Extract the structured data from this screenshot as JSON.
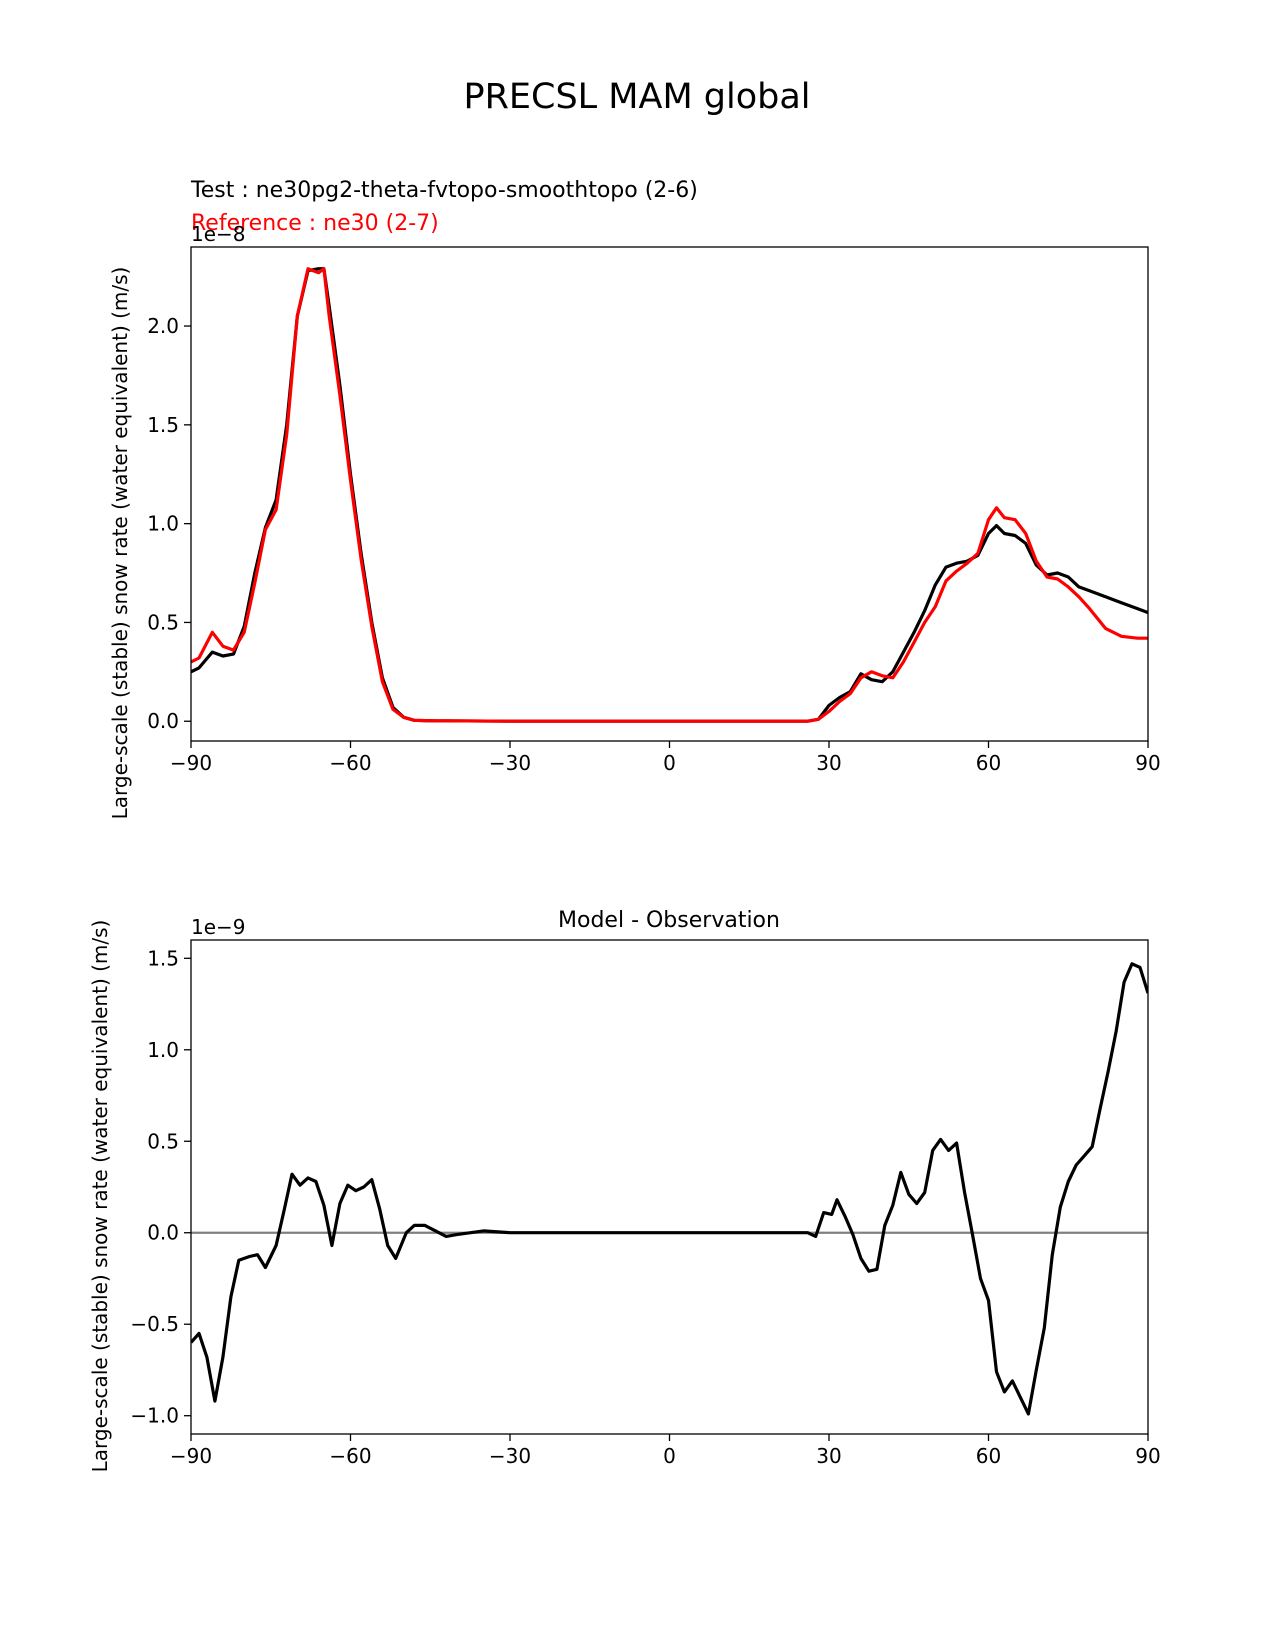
{
  "figure_title": "PRECSL MAM global",
  "colors": {
    "test": "#000000",
    "reference": "#ff0000",
    "zero_line": "#808080"
  },
  "chart_data": [
    {
      "type": "line",
      "title": "",
      "test_label": "Test : ne30pg2-theta-fvtopo-smoothtopo (2-6)",
      "reference_label": "Reference : ne30 (2-7)",
      "ylabel": "Large-scale (stable) snow rate (water equivalent) (m/s)",
      "y_offset_label": "1e−8",
      "xlim": [
        -90,
        90
      ],
      "ylim": [
        -0.1,
        2.4
      ],
      "xticks": [
        -90,
        -60,
        -30,
        0,
        30,
        60,
        90
      ],
      "xtick_labels": [
        "−90",
        "−60",
        "−30",
        "0",
        "30",
        "60",
        "90"
      ],
      "yticks": [
        0.0,
        0.5,
        1.0,
        1.5,
        2.0
      ],
      "ytick_labels": [
        "0.0",
        "0.5",
        "1.0",
        "1.5",
        "2.0"
      ],
      "series": [
        {
          "key": "test",
          "x": [
            -90,
            -88.5,
            -86,
            -84,
            -82,
            -80,
            -78,
            -76,
            -74,
            -72,
            -70,
            -68,
            -66,
            -65,
            -64,
            -62,
            -60,
            -58,
            -56,
            -54,
            -52,
            -50,
            -48,
            -46,
            -44,
            -42,
            -30,
            -20,
            -10,
            0,
            10,
            20,
            26,
            28,
            30,
            32,
            34,
            36,
            38,
            40,
            42,
            44,
            46,
            48,
            50,
            52,
            54,
            56,
            58,
            60,
            61.5,
            63,
            65,
            67,
            69,
            71,
            73,
            75,
            77,
            79,
            82,
            85,
            88,
            90
          ],
          "values": [
            0.25,
            0.27,
            0.35,
            0.33,
            0.34,
            0.48,
            0.75,
            0.98,
            1.12,
            1.5,
            2.05,
            2.28,
            2.29,
            2.29,
            2.1,
            1.7,
            1.25,
            0.85,
            0.5,
            0.22,
            0.07,
            0.02,
            0.005,
            0.003,
            0.002,
            0.002,
            0.0,
            0.0,
            0.0,
            0.0,
            0.0,
            0.0,
            0.0,
            0.01,
            0.08,
            0.12,
            0.15,
            0.24,
            0.21,
            0.2,
            0.25,
            0.35,
            0.45,
            0.56,
            0.69,
            0.78,
            0.8,
            0.81,
            0.84,
            0.95,
            0.99,
            0.95,
            0.94,
            0.9,
            0.79,
            0.74,
            0.75,
            0.73,
            0.68,
            0.66,
            0.63,
            0.6,
            0.57,
            0.55
          ]
        },
        {
          "key": "reference",
          "x": [
            -90,
            -88.5,
            -86,
            -84,
            -82,
            -80,
            -78,
            -76,
            -74,
            -72,
            -70,
            -68,
            -66,
            -65,
            -64,
            -62,
            -60,
            -58,
            -56,
            -54,
            -52,
            -50,
            -48,
            -46,
            -44,
            -42,
            -30,
            -20,
            -10,
            0,
            10,
            20,
            26,
            28,
            30,
            32,
            34,
            36,
            38,
            40,
            42,
            44,
            46,
            48,
            50,
            52,
            54,
            56,
            58,
            60,
            61.5,
            63,
            65,
            67,
            69,
            71,
            73,
            75,
            77,
            79,
            82,
            85,
            88,
            90
          ],
          "values": [
            0.3,
            0.32,
            0.45,
            0.38,
            0.36,
            0.45,
            0.7,
            0.97,
            1.07,
            1.45,
            2.05,
            2.29,
            2.27,
            2.29,
            2.05,
            1.65,
            1.22,
            0.82,
            0.48,
            0.2,
            0.06,
            0.02,
            0.005,
            0.003,
            0.002,
            0.002,
            0.0,
            0.0,
            0.0,
            0.0,
            0.0,
            0.0,
            0.0,
            0.01,
            0.05,
            0.1,
            0.14,
            0.22,
            0.25,
            0.23,
            0.22,
            0.3,
            0.4,
            0.5,
            0.58,
            0.71,
            0.76,
            0.8,
            0.85,
            1.02,
            1.08,
            1.03,
            1.02,
            0.95,
            0.81,
            0.73,
            0.72,
            0.68,
            0.63,
            0.57,
            0.47,
            0.43,
            0.42,
            0.42
          ]
        }
      ]
    },
    {
      "type": "line",
      "title": "Model - Observation",
      "ylabel": "Large-scale (stable) snow rate (water equivalent) (m/s)",
      "y_offset_label": "1e−9",
      "xlim": [
        -90,
        90
      ],
      "ylim": [
        -1.1,
        1.6
      ],
      "xticks": [
        -90,
        -60,
        -30,
        0,
        30,
        60,
        90
      ],
      "xtick_labels": [
        "−90",
        "−60",
        "−30",
        "0",
        "30",
        "60",
        "90"
      ],
      "yticks": [
        -1.0,
        -0.5,
        0.0,
        0.5,
        1.0,
        1.5
      ],
      "ytick_labels": [
        "−1.0",
        "−0.5",
        "0.0",
        "0.5",
        "1.0",
        "1.5"
      ],
      "zero_line": true,
      "series": [
        {
          "key": "difference",
          "x": [
            -90,
            -88.5,
            -87,
            -85.5,
            -84,
            -82.5,
            -81,
            -79,
            -77.5,
            -76,
            -74,
            -72.5,
            -71,
            -69.5,
            -68,
            -66.5,
            -65,
            -63.5,
            -62,
            -60.5,
            -59,
            -57.5,
            -56,
            -54.5,
            -53,
            -51.5,
            -49.5,
            -48,
            -46,
            -44,
            -42,
            -40,
            -35,
            -30,
            -25,
            -20,
            -10,
            0,
            10,
            20,
            26,
            27.5,
            29,
            30.5,
            31.5,
            33,
            34.5,
            36,
            37.5,
            39,
            40.5,
            42,
            43.5,
            45,
            46.5,
            48,
            49.5,
            51,
            52.5,
            54,
            55.5,
            57,
            58.5,
            60,
            61.5,
            63,
            64.5,
            66,
            67.5,
            69,
            70.5,
            72,
            73.5,
            75,
            76.5,
            78,
            79.5,
            81,
            82.5,
            84,
            85.5,
            87,
            88.5,
            90
          ],
          "values": [
            -0.6,
            -0.55,
            -0.68,
            -0.92,
            -0.68,
            -0.35,
            -0.15,
            -0.13,
            -0.12,
            -0.19,
            -0.07,
            0.12,
            0.32,
            0.26,
            0.3,
            0.28,
            0.15,
            -0.07,
            0.16,
            0.26,
            0.23,
            0.25,
            0.29,
            0.13,
            -0.07,
            -0.14,
            0.0,
            0.04,
            0.04,
            0.01,
            -0.02,
            -0.01,
            0.01,
            0.0,
            0.0,
            0.0,
            0.0,
            0.0,
            0.0,
            0.0,
            0.0,
            -0.02,
            0.11,
            0.1,
            0.18,
            0.09,
            -0.01,
            -0.14,
            -0.21,
            -0.2,
            0.04,
            0.15,
            0.33,
            0.21,
            0.16,
            0.22,
            0.45,
            0.51,
            0.45,
            0.49,
            0.22,
            -0.01,
            -0.25,
            -0.37,
            -0.76,
            -0.87,
            -0.81,
            -0.9,
            -0.99,
            -0.75,
            -0.52,
            -0.12,
            0.14,
            0.28,
            0.37,
            0.42,
            0.47,
            0.68,
            0.88,
            1.1,
            1.37,
            1.47,
            1.45,
            1.31
          ]
        }
      ]
    }
  ]
}
